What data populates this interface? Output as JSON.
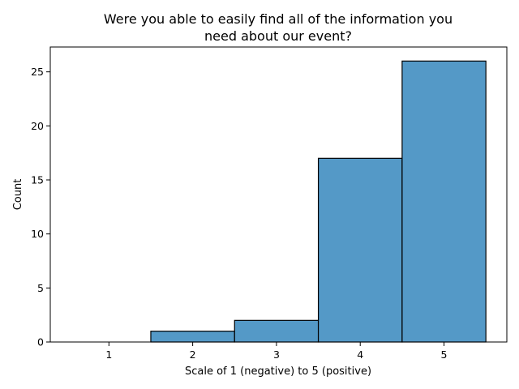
{
  "chart_data": {
    "type": "bar",
    "title_lines": [
      "Were you able to easily find all of the information you",
      "need about our event?"
    ],
    "xlabel": "Scale of 1 (negative) to 5 (positive)",
    "ylabel": "Count",
    "categories": [
      "1",
      "2",
      "3",
      "4",
      "5"
    ],
    "x": [
      1,
      2,
      3,
      4,
      5
    ],
    "values": [
      0,
      1,
      2,
      17,
      26
    ],
    "bin_width": 1,
    "xlim": [
      0.3,
      5.75
    ],
    "ylim": [
      0,
      27.3
    ],
    "yticks": [
      0,
      5,
      10,
      15,
      20,
      25
    ],
    "bar_color": "#5499c7",
    "edge_color": "#000000",
    "grid": false,
    "legend": "none"
  }
}
